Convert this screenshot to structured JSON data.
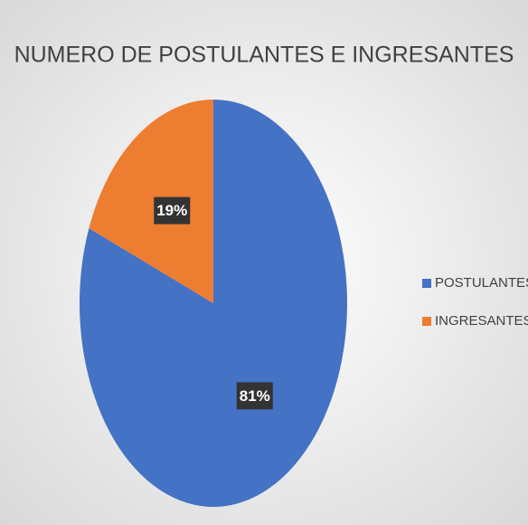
{
  "chart_data": {
    "type": "pie",
    "title": "NUMERO DE POSTULANTES E INGRESANTES",
    "categories": [
      "POSTULANTES",
      "INGRESANTES"
    ],
    "values": [
      81,
      19
    ],
    "value_labels": [
      "81%",
      "19%"
    ],
    "colors": [
      "#4472c4",
      "#ed7d31"
    ],
    "legend": "right"
  }
}
